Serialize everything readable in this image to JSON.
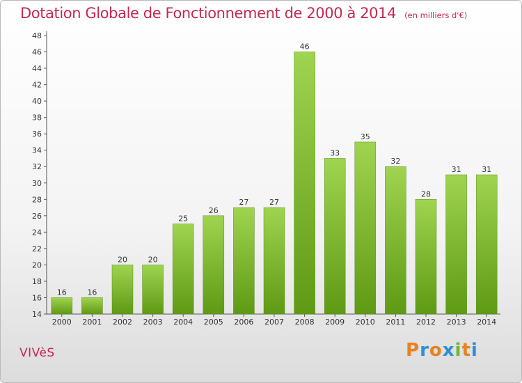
{
  "chart_data": {
    "type": "bar",
    "title": "Dotation Globale de Fonctionnement de 2000 à 2014",
    "subtitle": "(en milliers d'€)",
    "categories": [
      "2000",
      "2001",
      "2002",
      "2003",
      "2004",
      "2005",
      "2006",
      "2007",
      "2008",
      "2009",
      "2010",
      "2011",
      "2012",
      "2013",
      "2014"
    ],
    "values": [
      16,
      16,
      20,
      20,
      25,
      26,
      27,
      27,
      46,
      33,
      35,
      32,
      28,
      31,
      31
    ],
    "ylim": [
      14,
      48
    ],
    "yticks": [
      14,
      16,
      18,
      20,
      22,
      24,
      26,
      28,
      30,
      32,
      34,
      36,
      38,
      40,
      42,
      44,
      46,
      48
    ],
    "grid": false,
    "bar_color": "#7ab82e",
    "data_labels": true
  },
  "commune": "VIVèS",
  "logo": {
    "letters": [
      "P",
      "r",
      "o",
      "x",
      "i",
      "t",
      "i"
    ],
    "colors": [
      "#e8821e",
      "#2d8fd4",
      "#e8821e",
      "#2d8fd4",
      "#6ab92d",
      "#e8821e",
      "#2d8fd4"
    ]
  }
}
